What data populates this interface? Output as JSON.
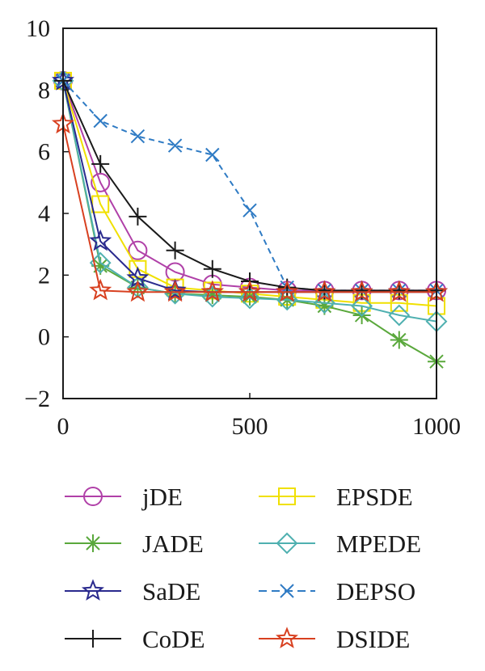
{
  "chart_data": {
    "type": "line",
    "title": "",
    "xlabel": "",
    "ylabel": "",
    "xlim": [
      0,
      1000
    ],
    "ylim": [
      -2,
      10
    ],
    "xticks": [
      0,
      500,
      1000
    ],
    "yticks": [
      -2,
      0,
      2,
      4,
      6,
      8,
      10
    ],
    "xtick_labels": [
      "0",
      "500",
      "1000"
    ],
    "ytick_labels": [
      "−2",
      "0",
      "2",
      "4",
      "6",
      "8",
      "10"
    ],
    "grid": false,
    "legend_placement": "bottom",
    "x": [
      0,
      100,
      200,
      300,
      400,
      500,
      600,
      700,
      800,
      900,
      1000
    ],
    "series": [
      {
        "name": "jDE",
        "color": "#b040a8",
        "marker": "circle",
        "dash": "solid",
        "values": [
          8.3,
          5.0,
          2.8,
          2.1,
          1.7,
          1.6,
          1.5,
          1.5,
          1.5,
          1.5,
          1.5
        ]
      },
      {
        "name": "EPSDE",
        "color": "#f0e000",
        "marker": "square",
        "dash": "solid",
        "values": [
          8.3,
          4.3,
          2.2,
          1.6,
          1.5,
          1.4,
          1.3,
          1.2,
          1.1,
          1.1,
          1.0
        ]
      },
      {
        "name": "JADE",
        "color": "#5aa83c",
        "marker": "asterisk",
        "dash": "solid",
        "values": [
          8.3,
          2.3,
          1.6,
          1.4,
          1.35,
          1.3,
          1.2,
          1.0,
          0.7,
          -0.1,
          -0.8
        ]
      },
      {
        "name": "MPEDE",
        "color": "#4fb0b0",
        "marker": "diamond",
        "dash": "solid",
        "values": [
          8.3,
          2.4,
          1.6,
          1.4,
          1.3,
          1.25,
          1.2,
          1.1,
          1.0,
          0.7,
          0.5
        ]
      },
      {
        "name": "SaDE",
        "color": "#2a2a8e",
        "marker": "star",
        "dash": "solid",
        "values": [
          8.3,
          3.1,
          1.9,
          1.5,
          1.45,
          1.45,
          1.45,
          1.45,
          1.45,
          1.45,
          1.45
        ]
      },
      {
        "name": "DEPSO",
        "color": "#2f7bc4",
        "marker": "x",
        "dash": "dashed",
        "values": [
          8.3,
          7.0,
          6.5,
          6.2,
          5.9,
          4.1,
          1.6,
          1.5,
          1.5,
          1.5,
          1.5
        ]
      },
      {
        "name": "CoDE",
        "color": "#1a1a1a",
        "marker": "plus",
        "dash": "solid",
        "values": [
          8.3,
          5.6,
          3.9,
          2.8,
          2.2,
          1.8,
          1.6,
          1.5,
          1.5,
          1.5,
          1.5
        ]
      },
      {
        "name": "DSIDE",
        "color": "#d84020",
        "marker": "star",
        "dash": "solid",
        "values": [
          6.9,
          1.5,
          1.45,
          1.45,
          1.45,
          1.45,
          1.45,
          1.45,
          1.45,
          1.45,
          1.45
        ]
      }
    ]
  }
}
